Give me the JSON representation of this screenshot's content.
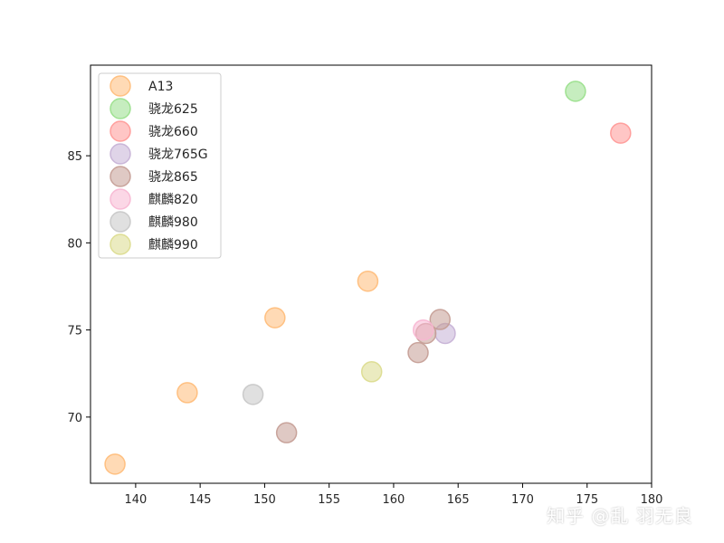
{
  "chart_data": {
    "type": "scatter",
    "title": "",
    "xlabel": "",
    "ylabel": "",
    "xlim": [
      136.5,
      180
    ],
    "ylim": [
      66.2,
      90.2
    ],
    "xticks": [
      140,
      145,
      150,
      155,
      160,
      165,
      170,
      175,
      180
    ],
    "yticks": [
      70,
      75,
      80,
      85
    ],
    "grid": false,
    "legend_position": "upper-left",
    "series": [
      {
        "name": "A13",
        "color": "#ffbb78",
        "points": [
          [
            138.4,
            67.3
          ],
          [
            144.0,
            71.4
          ],
          [
            150.8,
            75.7
          ],
          [
            158.0,
            77.8
          ]
        ]
      },
      {
        "name": "骁龙625",
        "color": "#98df8a",
        "points": [
          [
            174.1,
            88.7
          ]
        ]
      },
      {
        "name": "骁龙660",
        "color": "#ff9896",
        "points": [
          [
            177.6,
            86.3
          ]
        ]
      },
      {
        "name": "骁龙765G",
        "color": "#c5b0d5",
        "points": [
          [
            164.0,
            74.8
          ]
        ]
      },
      {
        "name": "骁龙865",
        "color": "#c49c94",
        "points": [
          [
            151.7,
            69.1
          ],
          [
            161.9,
            73.7
          ],
          [
            163.6,
            75.6
          ],
          [
            162.5,
            74.8
          ]
        ]
      },
      {
        "name": "麒麟820",
        "color": "#f7b6d2",
        "points": [
          [
            162.3,
            75.0
          ]
        ]
      },
      {
        "name": "麒麟980",
        "color": "#c7c7c7",
        "points": [
          [
            149.1,
            71.3
          ]
        ]
      },
      {
        "name": "麒麟990",
        "color": "#dbdb8d",
        "points": [
          [
            158.3,
            72.6
          ]
        ]
      }
    ]
  },
  "watermark": "知乎 @乱 羽无良"
}
